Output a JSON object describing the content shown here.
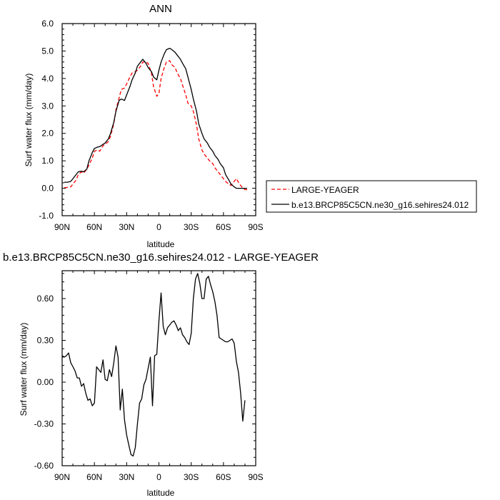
{
  "chart_data": [
    {
      "type": "line",
      "title": "ANN",
      "xlabel": "latitude",
      "ylabel": "Surf water flux (mm/day)",
      "xlim": [
        90,
        -90
      ],
      "ylim": [
        -1.0,
        6.0
      ],
      "x_ticks": [
        90,
        60,
        30,
        0,
        -30,
        -60,
        -90
      ],
      "x_tick_labels": [
        "90N",
        "60N",
        "30N",
        "0",
        "30S",
        "60S",
        "90S"
      ],
      "y_ticks": [
        -1.0,
        0.0,
        1.0,
        2.0,
        3.0,
        4.0,
        5.0,
        6.0
      ],
      "y_tick_labels": [
        "-1.0",
        "0.0",
        "1.0",
        "2.0",
        "3.0",
        "4.0",
        "5.0",
        "6.0"
      ],
      "legend_position": "right",
      "series": [
        {
          "name": "LARGE-YEAGER",
          "color": "#ff0000",
          "dash": "dashed",
          "x": [
            88,
            85,
            82,
            80,
            77,
            75,
            72,
            70,
            67,
            65,
            62,
            60,
            57,
            55,
            52,
            50,
            47,
            45,
            42,
            40,
            37,
            35,
            32,
            30,
            27,
            25,
            22,
            20,
            17,
            15,
            12,
            10,
            7,
            5,
            2,
            0,
            -2,
            -5,
            -7,
            -10,
            -12,
            -15,
            -17,
            -20,
            -22,
            -25,
            -27,
            -30,
            -32,
            -35,
            -37,
            -40,
            -42,
            -45,
            -47,
            -50,
            -52,
            -55,
            -57,
            -60,
            -62,
            -65,
            -67,
            -70,
            -72,
            -75,
            -77,
            -80,
            -82
          ],
          "y": [
            0.02,
            0.03,
            0.05,
            0.15,
            0.3,
            0.5,
            0.6,
            0.55,
            0.7,
            0.85,
            1.1,
            1.35,
            1.4,
            1.35,
            1.55,
            1.6,
            1.7,
            1.9,
            2.35,
            2.85,
            3.3,
            3.6,
            3.65,
            3.8,
            4.05,
            4.2,
            4.25,
            4.3,
            4.45,
            4.6,
            4.6,
            4.55,
            4.2,
            3.7,
            3.35,
            3.45,
            4.0,
            4.4,
            4.6,
            4.65,
            4.5,
            4.4,
            4.2,
            4.0,
            3.75,
            3.4,
            3.1,
            3.0,
            2.8,
            2.3,
            1.8,
            1.4,
            1.25,
            1.1,
            1.0,
            0.9,
            0.75,
            0.6,
            0.5,
            0.35,
            0.25,
            0.15,
            0.1,
            0.25,
            0.35,
            0.15,
            0.05,
            -0.05,
            -0.05
          ]
        },
        {
          "name": "b.e13.BRCP85C5CN.ne30_g16.sehires24.012",
          "color": "#000000",
          "dash": "solid",
          "x": [
            88,
            85,
            82,
            80,
            77,
            75,
            72,
            70,
            67,
            65,
            62,
            60,
            57,
            55,
            52,
            50,
            47,
            45,
            42,
            40,
            37,
            35,
            32,
            30,
            27,
            25,
            22,
            20,
            17,
            15,
            12,
            10,
            7,
            5,
            2,
            0,
            -2,
            -5,
            -7,
            -10,
            -12,
            -15,
            -17,
            -20,
            -22,
            -25,
            -27,
            -30,
            -32,
            -35,
            -37,
            -40,
            -42,
            -45,
            -47,
            -50,
            -52,
            -55,
            -57,
            -60,
            -62,
            -65,
            -67,
            -70,
            -72,
            -75,
            -77,
            -80,
            -82
          ],
          "y": [
            0.22,
            0.22,
            0.25,
            0.35,
            0.5,
            0.6,
            0.62,
            0.6,
            0.7,
            1.0,
            1.3,
            1.45,
            1.5,
            1.52,
            1.6,
            1.65,
            1.8,
            2.0,
            2.4,
            2.8,
            3.2,
            3.25,
            3.2,
            3.4,
            3.7,
            3.95,
            4.2,
            4.45,
            4.6,
            4.7,
            4.55,
            4.4,
            4.25,
            4.05,
            3.95,
            4.3,
            4.6,
            4.9,
            5.05,
            5.1,
            5.05,
            4.95,
            4.85,
            4.7,
            4.55,
            4.35,
            4.05,
            3.6,
            3.25,
            2.8,
            2.35,
            2.0,
            1.8,
            1.65,
            1.5,
            1.35,
            1.2,
            1.05,
            0.9,
            0.75,
            0.5,
            0.3,
            0.15,
            0.05,
            0.0,
            0.0,
            0.0,
            0.0,
            0.0
          ]
        }
      ]
    },
    {
      "type": "line",
      "title": "b.e13.BRCP85C5CN.ne30_g16.sehires24.012 - LARGE-YEAGER",
      "xlabel": "latitude",
      "ylabel": "Surf water flux (mm/day)",
      "xlim": [
        90,
        -90
      ],
      "ylim": [
        -0.6,
        0.8
      ],
      "x_ticks": [
        90,
        60,
        30,
        0,
        -30,
        -60,
        -90
      ],
      "x_tick_labels": [
        "90N",
        "60N",
        "30N",
        "0",
        "30S",
        "60S",
        "90S"
      ],
      "y_ticks": [
        -0.6,
        -0.3,
        0.0,
        0.3,
        0.6
      ],
      "y_tick_labels": [
        "-0.60",
        "-0.30",
        "0.00",
        "0.30",
        "0.60"
      ],
      "series": [
        {
          "color": "#000000",
          "x": [
            90,
            88,
            86,
            84,
            82,
            80,
            78,
            76,
            74,
            72,
            70,
            68,
            66,
            64,
            62,
            60,
            58,
            56,
            54,
            52,
            50,
            48,
            46,
            44,
            42,
            40,
            38,
            36,
            34,
            32,
            30,
            28,
            26,
            24,
            22,
            20,
            18,
            16,
            14,
            12,
            10,
            8,
            6,
            4,
            2,
            0,
            -2,
            -4,
            -6,
            -8,
            -10,
            -12,
            -14,
            -16,
            -18,
            -20,
            -22,
            -24,
            -26,
            -28,
            -30,
            -32,
            -34,
            -36,
            -38,
            -40,
            -42,
            -44,
            -46,
            -48,
            -50,
            -52,
            -54,
            -56,
            -58,
            -60,
            -62,
            -64,
            -66,
            -68,
            -70,
            -72,
            -74,
            -76,
            -78,
            -80
          ],
          "y": [
            0.19,
            0.18,
            0.19,
            0.21,
            0.14,
            0.11,
            0.08,
            0.03,
            0.03,
            -0.03,
            -0.01,
            -0.08,
            -0.13,
            -0.12,
            -0.17,
            -0.15,
            0.11,
            0.09,
            0.07,
            0.16,
            0.02,
            0.01,
            0.09,
            0.04,
            0.14,
            0.26,
            0.18,
            -0.2,
            -0.05,
            -0.27,
            -0.38,
            -0.45,
            -0.52,
            -0.53,
            -0.47,
            -0.3,
            -0.15,
            -0.12,
            -0.02,
            0.02,
            0.1,
            0.18,
            -0.17,
            0.19,
            0.2,
            0.44,
            0.64,
            0.4,
            0.34,
            0.39,
            0.41,
            0.43,
            0.44,
            0.41,
            0.37,
            0.39,
            0.34,
            0.32,
            0.29,
            0.27,
            0.35,
            0.6,
            0.74,
            0.78,
            0.71,
            0.6,
            0.6,
            0.74,
            0.76,
            0.7,
            0.65,
            0.58,
            0.48,
            0.32,
            0.31,
            0.3,
            0.29,
            0.29,
            0.3,
            0.31,
            0.28,
            0.15,
            0.07,
            -0.08,
            -0.28,
            -0.13
          ]
        }
      ]
    }
  ]
}
